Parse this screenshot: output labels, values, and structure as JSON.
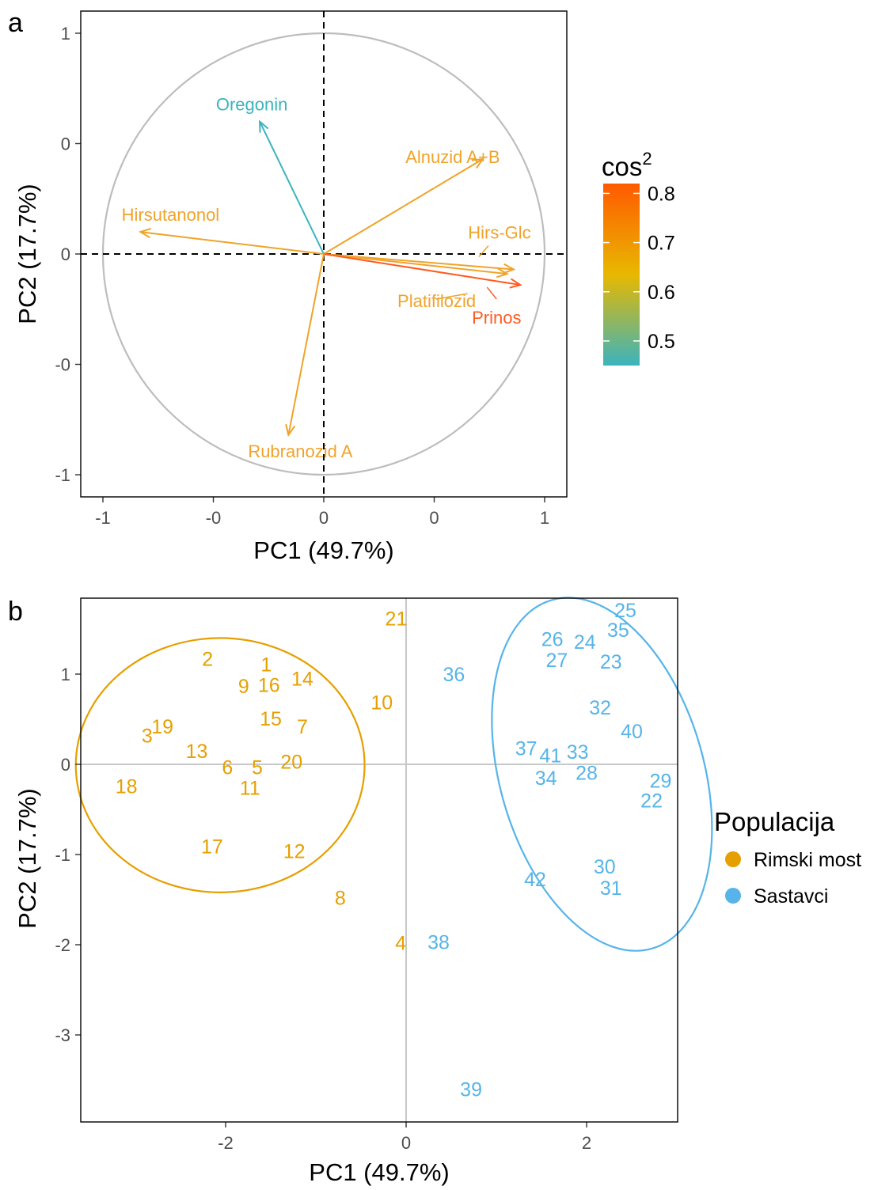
{
  "chart_data": [
    {
      "panel": "a",
      "type": "biplot-variables",
      "xlabel": "PC1 (49.7%)",
      "ylabel": "PC2 (17.7%)",
      "xlim": [
        -1.2,
        1.1
      ],
      "ylim": [
        -1.1,
        1.1
      ],
      "x_ticks": [
        -1,
        -0.5,
        0,
        0.5,
        1
      ],
      "x_tick_labels": [
        "-1",
        "-0",
        "0",
        "0",
        "1"
      ],
      "y_ticks": [
        1,
        0.5,
        0,
        -0.5,
        -1
      ],
      "y_tick_labels": [
        "1",
        "0",
        "0",
        "-0",
        "-1"
      ],
      "reference_lines": "dashed at x=0 and y=0",
      "unit_circle": true,
      "grid": false,
      "colorbar": {
        "title_base": "cos",
        "title_sup": "2",
        "range": [
          0.45,
          0.82
        ],
        "ticks": [
          0.8,
          0.7,
          0.6,
          0.5
        ],
        "colors": [
          "#3bb4bd",
          "#e8b800",
          "#ff5a00"
        ]
      },
      "variables": [
        {
          "name": "Oregonin",
          "x": -0.29,
          "y": 0.6,
          "cos2": 0.45,
          "color": "#3bb4bd"
        },
        {
          "name": "Alnuzid A+B",
          "x": 0.72,
          "y": 0.43,
          "cos2": 0.68,
          "color": "#f0a32a"
        },
        {
          "name": "Hirsutanonol",
          "x": -0.83,
          "y": 0.1,
          "cos2": 0.69,
          "color": "#f0a32a"
        },
        {
          "name": "Hirs-Glc",
          "x": 0.86,
          "y": -0.07,
          "cos2": 0.7,
          "color": "#f0a32a"
        },
        {
          "name": "Platifilozid",
          "x": 0.83,
          "y": -0.09,
          "cos2": 0.66,
          "color": "#f0a32a"
        },
        {
          "name": "Prinos",
          "x": 0.89,
          "y": -0.14,
          "cos2": 0.8,
          "color": "#ff5a1f"
        },
        {
          "name": "Rubranozid A",
          "x": -0.16,
          "y": -0.82,
          "cos2": 0.69,
          "color": "#f0a32a"
        }
      ]
    },
    {
      "panel": "b",
      "type": "scatter",
      "xlabel": "PC1 (49.7%)",
      "ylabel": "PC2 (17.7%)",
      "xlim": [
        -3.6,
        3.0
      ],
      "ylim": [
        -4.0,
        1.9
      ],
      "x_ticks": [
        -2,
        0,
        2
      ],
      "y_ticks": [
        1,
        0,
        -1,
        -2,
        -3
      ],
      "reference_lines": "solid grey at x=0 and y=0",
      "grid": false,
      "legend": {
        "title": "Populacija",
        "placement": "right",
        "entries": [
          {
            "name": "Rimski most",
            "color": "#e69f00"
          },
          {
            "name": "Sastavci",
            "color": "#56b4e9"
          }
        ]
      },
      "series": [
        {
          "name": "Rimski most",
          "color": "#e69f00",
          "ellipse": {
            "cx": -2.06,
            "cy": -0.01,
            "rx": 1.6,
            "ry": 1.41,
            "angle_deg": 0
          },
          "points": [
            {
              "label": "1",
              "x": -1.55,
              "y": 1.11
            },
            {
              "label": "2",
              "x": -2.2,
              "y": 1.17
            },
            {
              "label": "3",
              "x": -2.87,
              "y": 0.32
            },
            {
              "label": "4",
              "x": -0.06,
              "y": -1.98
            },
            {
              "label": "5",
              "x": -1.65,
              "y": -0.03
            },
            {
              "label": "6",
              "x": -1.98,
              "y": -0.03
            },
            {
              "label": "7",
              "x": -1.15,
              "y": 0.42
            },
            {
              "label": "8",
              "x": -0.73,
              "y": -1.48
            },
            {
              "label": "9",
              "x": -1.8,
              "y": 0.87
            },
            {
              "label": "10",
              "x": -0.27,
              "y": 0.69
            },
            {
              "label": "11",
              "x": -1.73,
              "y": -0.26
            },
            {
              "label": "12",
              "x": -1.24,
              "y": -0.96
            },
            {
              "label": "13",
              "x": -2.32,
              "y": 0.15
            },
            {
              "label": "14",
              "x": -1.15,
              "y": 0.95
            },
            {
              "label": "15",
              "x": -1.5,
              "y": 0.51
            },
            {
              "label": "16",
              "x": -1.52,
              "y": 0.88
            },
            {
              "label": "17",
              "x": -2.15,
              "y": -0.91
            },
            {
              "label": "18",
              "x": -3.1,
              "y": -0.24
            },
            {
              "label": "19",
              "x": -2.7,
              "y": 0.42
            },
            {
              "label": "20",
              "x": -1.27,
              "y": 0.03
            },
            {
              "label": "21",
              "x": -0.11,
              "y": 1.62
            }
          ]
        },
        {
          "name": "Sastavci",
          "color": "#56b4e9",
          "ellipse": {
            "cx": 2.17,
            "cy": -0.11,
            "rx": 1.13,
            "ry": 2.01,
            "angle_deg": -16
          },
          "points": [
            {
              "label": "22",
              "x": 2.72,
              "y": -0.4
            },
            {
              "label": "23",
              "x": 2.27,
              "y": 1.14
            },
            {
              "label": "24",
              "x": 1.98,
              "y": 1.36
            },
            {
              "label": "25",
              "x": 2.43,
              "y": 1.71
            },
            {
              "label": "26",
              "x": 1.62,
              "y": 1.39
            },
            {
              "label": "27",
              "x": 1.67,
              "y": 1.16
            },
            {
              "label": "28",
              "x": 2.0,
              "y": -0.09
            },
            {
              "label": "29",
              "x": 2.82,
              "y": -0.18
            },
            {
              "label": "30",
              "x": 2.2,
              "y": -1.13
            },
            {
              "label": "31",
              "x": 2.27,
              "y": -1.37
            },
            {
              "label": "32",
              "x": 2.15,
              "y": 0.63
            },
            {
              "label": "33",
              "x": 1.9,
              "y": 0.14
            },
            {
              "label": "34",
              "x": 1.55,
              "y": -0.15
            },
            {
              "label": "35",
              "x": 2.35,
              "y": 1.49
            },
            {
              "label": "36",
              "x": 0.53,
              "y": 1.0
            },
            {
              "label": "37",
              "x": 1.33,
              "y": 0.18
            },
            {
              "label": "38",
              "x": 0.36,
              "y": -1.97
            },
            {
              "label": "39",
              "x": 0.72,
              "y": -3.6
            },
            {
              "label": "40",
              "x": 2.5,
              "y": 0.37
            },
            {
              "label": "41",
              "x": 1.6,
              "y": 0.1
            },
            {
              "label": "42",
              "x": 1.43,
              "y": -1.27
            }
          ]
        }
      ]
    }
  ]
}
